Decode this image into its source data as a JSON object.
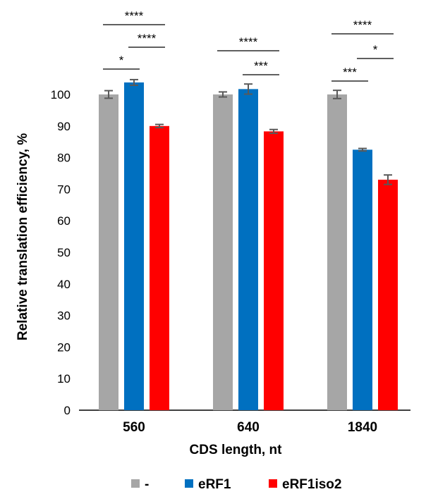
{
  "chart_data": {
    "type": "bar",
    "title": "",
    "xlabel": "CDS length, nt",
    "ylabel": "Relative translation efficiency, %",
    "ylim": [
      0,
      100
    ],
    "yticks": [
      "0",
      "10",
      "20",
      "30",
      "40",
      "50",
      "60",
      "70",
      "80",
      "90",
      "100"
    ],
    "categories": [
      "560",
      "640",
      "1840"
    ],
    "legend_position": "bottom",
    "series": [
      {
        "name": "-",
        "color": "#a6a6a6",
        "values": [
          100,
          100,
          100
        ],
        "errors": [
          1.2,
          0.8,
          1.3
        ]
      },
      {
        "name": "eRF1",
        "color": "#0070c0",
        "values": [
          103.8,
          101.7,
          82.5
        ],
        "errors": [
          0.9,
          1.6,
          0.4
        ]
      },
      {
        "name": "eRF1iso2",
        "color": "#ff0000",
        "values": [
          90,
          88.3,
          73
        ],
        "errors": [
          0.5,
          0.6,
          1.5
        ]
      }
    ],
    "significance": [
      {
        "group": 0,
        "from": 0,
        "to": 2,
        "label": "****"
      },
      {
        "group": 0,
        "from": 1,
        "to": 2,
        "label": "****"
      },
      {
        "group": 0,
        "from": 0,
        "to": 1,
        "label": "*"
      },
      {
        "group": 1,
        "from": 0,
        "to": 2,
        "label": "****"
      },
      {
        "group": 1,
        "from": 1,
        "to": 2,
        "label": "***"
      },
      {
        "group": 2,
        "from": 0,
        "to": 2,
        "label": "****"
      },
      {
        "group": 2,
        "from": 1,
        "to": 2,
        "label": "*"
      },
      {
        "group": 2,
        "from": 0,
        "to": 1,
        "label": "***"
      }
    ]
  }
}
